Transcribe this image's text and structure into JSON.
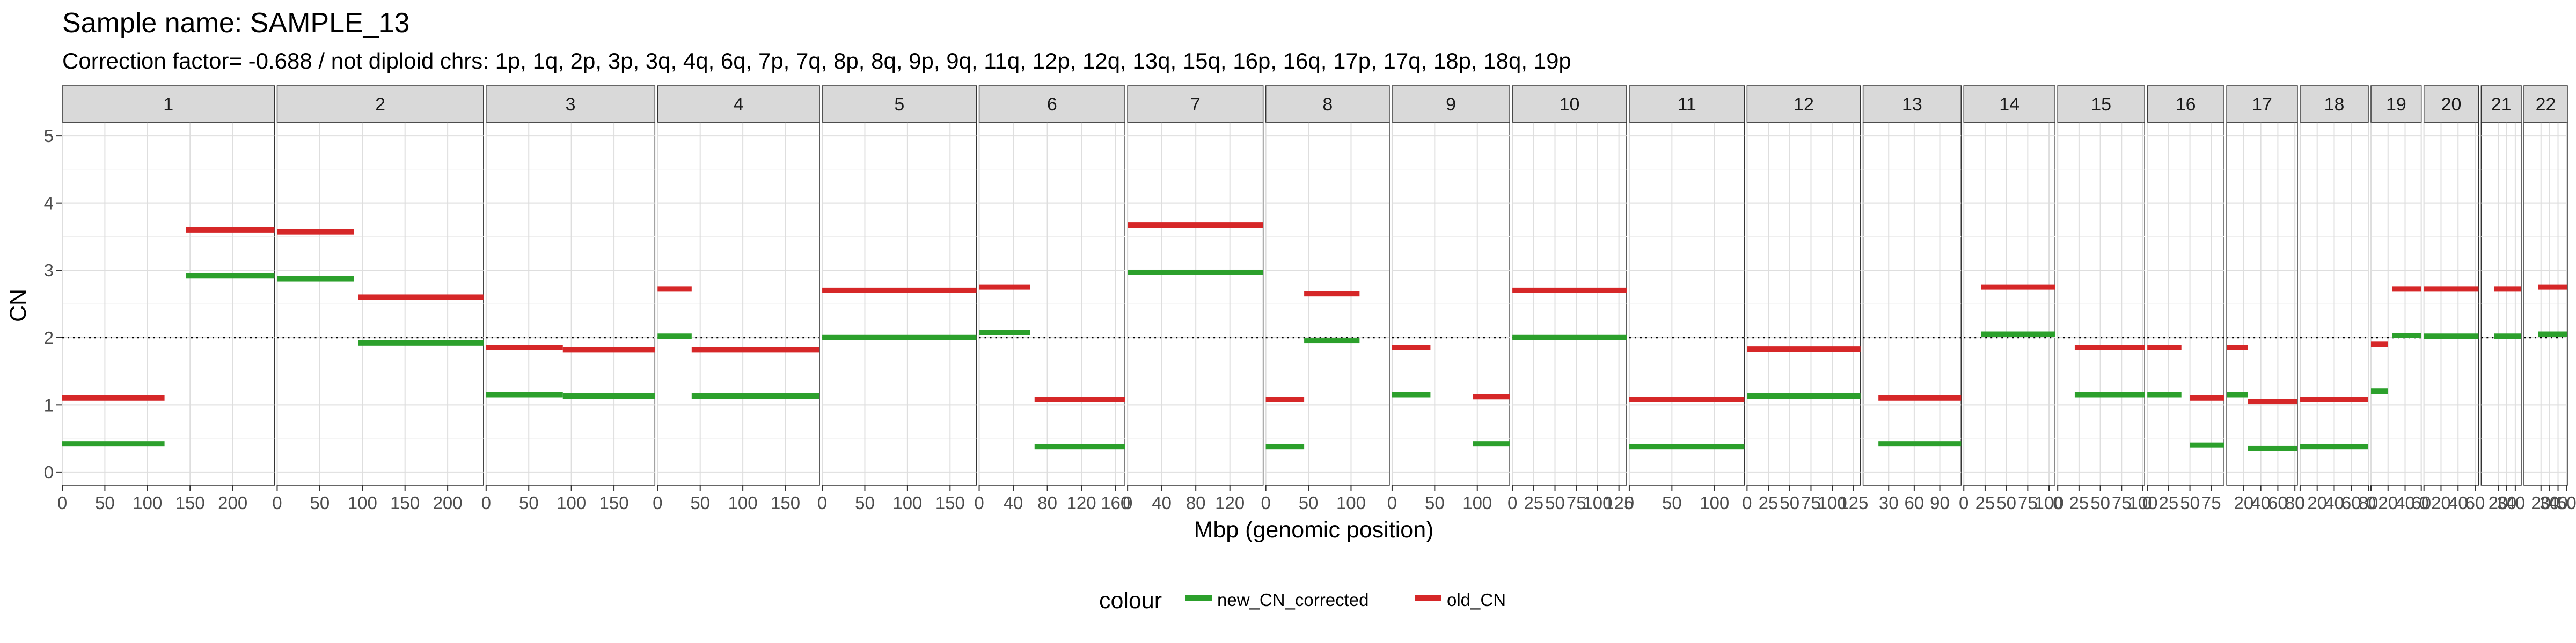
{
  "chart_data": {
    "type": "scatter",
    "title": "Sample name: SAMPLE_13",
    "subtitle": "Correction factor= -0.688 / not diploid chrs: 1p, 1q, 2p, 3p, 3q, 4q, 6q, 7p, 7q, 8p, 8q, 9p, 9q, 11q, 12p, 12q, 13q, 15q, 16p, 16q, 17p, 17q, 18p, 18q, 19p",
    "xlabel": "Mbp (genomic position)",
    "ylabel": "CN",
    "ylim": [
      -0.2,
      5.2
    ],
    "yticks": [
      0,
      1,
      2,
      3,
      4,
      5
    ],
    "reference_line": {
      "y": 2,
      "style": "dotted"
    },
    "grid": true,
    "legend_title": "colour",
    "legend_position": "bottom",
    "series": [
      {
        "name": "new_CN_corrected",
        "color": "#2ca02c"
      },
      {
        "name": "old_CN",
        "color": "#d62728"
      }
    ],
    "facets": [
      {
        "label": "1",
        "xmax": 249,
        "ticks": [
          "0",
          "50",
          "100",
          "150",
          "200"
        ],
        "old": [
          [
            0,
            120,
            1.1
          ],
          [
            145,
            249,
            3.6
          ]
        ],
        "new": [
          [
            0,
            120,
            0.42
          ],
          [
            145,
            249,
            2.92
          ]
        ]
      },
      {
        "label": "2",
        "xmax": 242,
        "ticks": [
          "0",
          "50",
          "100",
          "150",
          "200"
        ],
        "old": [
          [
            0,
            90,
            3.57
          ],
          [
            95,
            242,
            2.6
          ]
        ],
        "new": [
          [
            0,
            90,
            2.87
          ],
          [
            95,
            242,
            1.92
          ]
        ]
      },
      {
        "label": "3",
        "xmax": 198,
        "ticks": [
          "0",
          "50",
          "100",
          "150"
        ],
        "old": [
          [
            0,
            90,
            1.85
          ],
          [
            90,
            198,
            1.82
          ]
        ],
        "new": [
          [
            0,
            90,
            1.15
          ],
          [
            90,
            198,
            1.13
          ]
        ]
      },
      {
        "label": "4",
        "xmax": 190,
        "ticks": [
          "0",
          "50",
          "100",
          "150"
        ],
        "old": [
          [
            0,
            40,
            2.72
          ],
          [
            40,
            190,
            1.82
          ]
        ],
        "new": [
          [
            0,
            40,
            2.02
          ],
          [
            40,
            190,
            1.13
          ]
        ]
      },
      {
        "label": "5",
        "xmax": 181,
        "ticks": [
          "0",
          "50",
          "100",
          "150"
        ],
        "old": [
          [
            0,
            181,
            2.7
          ]
        ],
        "new": [
          [
            0,
            181,
            2.0
          ]
        ]
      },
      {
        "label": "6",
        "xmax": 171,
        "ticks": [
          "0",
          "40",
          "80",
          "120",
          "160"
        ],
        "old": [
          [
            0,
            60,
            2.75
          ],
          [
            65,
            171,
            1.08
          ]
        ],
        "new": [
          [
            0,
            60,
            2.07
          ],
          [
            65,
            171,
            0.38
          ]
        ]
      },
      {
        "label": "7",
        "xmax": 159,
        "ticks": [
          "0",
          "40",
          "80",
          "120"
        ],
        "old": [
          [
            0,
            159,
            3.67
          ]
        ],
        "new": [
          [
            0,
            159,
            2.97
          ]
        ]
      },
      {
        "label": "8",
        "xmax": 145,
        "ticks": [
          "0",
          "50",
          "100"
        ],
        "old": [
          [
            0,
            45,
            1.08
          ],
          [
            45,
            110,
            2.65
          ]
        ],
        "new": [
          [
            0,
            45,
            0.38
          ],
          [
            45,
            110,
            1.95
          ]
        ]
      },
      {
        "label": "9",
        "xmax": 138,
        "ticks": [
          "0",
          "50",
          "100"
        ],
        "old": [
          [
            0,
            45,
            1.85
          ],
          [
            95,
            138,
            1.12
          ]
        ],
        "new": [
          [
            0,
            45,
            1.15
          ],
          [
            95,
            138,
            0.42
          ]
        ]
      },
      {
        "label": "10",
        "xmax": 134,
        "ticks": [
          "0",
          "25",
          "50",
          "75",
          "100",
          "125"
        ],
        "old": [
          [
            0,
            134,
            2.7
          ]
        ],
        "new": [
          [
            0,
            134,
            2.0
          ]
        ]
      },
      {
        "label": "11",
        "xmax": 135,
        "ticks": [
          "0",
          "50",
          "100"
        ],
        "old": [
          [
            0,
            135,
            1.08
          ]
        ],
        "new": [
          [
            0,
            135,
            0.38
          ]
        ]
      },
      {
        "label": "12",
        "xmax": 133,
        "ticks": [
          "0",
          "25",
          "50",
          "75",
          "100",
          "125"
        ],
        "old": [
          [
            0,
            133,
            1.83
          ]
        ],
        "new": [
          [
            0,
            133,
            1.13
          ]
        ]
      },
      {
        "label": "13",
        "xmax": 115,
        "ticks": [
          "30",
          "60",
          "90"
        ],
        "old": [
          [
            18,
            115,
            1.1
          ]
        ],
        "new": [
          [
            18,
            115,
            0.42
          ]
        ]
      },
      {
        "label": "14",
        "xmax": 107,
        "ticks": [
          "0",
          "25",
          "50",
          "75",
          "100"
        ],
        "old": [
          [
            20,
            107,
            2.75
          ]
        ],
        "new": [
          [
            20,
            107,
            2.05
          ]
        ]
      },
      {
        "label": "15",
        "xmax": 102,
        "ticks": [
          "0",
          "25",
          "50",
          "75",
          "100"
        ],
        "old": [
          [
            20,
            102,
            1.85
          ]
        ],
        "new": [
          [
            20,
            102,
            1.15
          ]
        ]
      },
      {
        "label": "16",
        "xmax": 90,
        "ticks": [
          "0",
          "25",
          "50",
          "75"
        ],
        "old": [
          [
            0,
            40,
            1.85
          ],
          [
            50,
            90,
            1.1
          ]
        ],
        "new": [
          [
            0,
            40,
            1.15
          ],
          [
            50,
            90,
            0.4
          ]
        ]
      },
      {
        "label": "17",
        "xmax": 83,
        "ticks": [
          "20",
          "40",
          "60",
          "80"
        ],
        "old": [
          [
            0,
            25,
            1.85
          ],
          [
            25,
            83,
            1.05
          ]
        ],
        "new": [
          [
            0,
            25,
            1.15
          ],
          [
            25,
            83,
            0.35
          ]
        ]
      },
      {
        "label": "18",
        "xmax": 80,
        "ticks": [
          "0",
          "20",
          "40",
          "60",
          "80"
        ],
        "old": [
          [
            0,
            80,
            1.08
          ]
        ],
        "new": [
          [
            0,
            80,
            0.38
          ]
        ]
      },
      {
        "label": "19",
        "xmax": 59,
        "ticks": [
          "0",
          "20",
          "40",
          "60"
        ],
        "old": [
          [
            0,
            20,
            1.9
          ],
          [
            25,
            59,
            2.72
          ]
        ],
        "new": [
          [
            0,
            20,
            1.2
          ],
          [
            25,
            59,
            2.03
          ]
        ]
      },
      {
        "label": "20",
        "xmax": 64,
        "ticks": [
          "0",
          "20",
          "40",
          "60"
        ],
        "old": [
          [
            0,
            64,
            2.72
          ]
        ],
        "new": [
          [
            0,
            64,
            2.02
          ]
        ]
      },
      {
        "label": "21",
        "xmax": 47,
        "ticks": [
          "20",
          "30",
          "40"
        ],
        "old": [
          [
            15,
            47,
            2.72
          ]
        ],
        "new": [
          [
            15,
            47,
            2.02
          ]
        ]
      },
      {
        "label": "22",
        "xmax": 51,
        "ticks": [
          "20",
          "30",
          "40",
          "50"
        ],
        "old": [
          [
            17,
            51,
            2.75
          ]
        ],
        "new": [
          [
            17,
            51,
            2.05
          ]
        ]
      }
    ]
  }
}
